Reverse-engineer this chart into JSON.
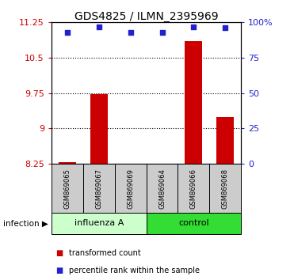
{
  "title": "GDS4825 / ILMN_2395969",
  "samples": [
    "GSM869065",
    "GSM869067",
    "GSM869069",
    "GSM869064",
    "GSM869066",
    "GSM869068"
  ],
  "groups": [
    "influenza A",
    "influenza A",
    "influenza A",
    "control",
    "control",
    "control"
  ],
  "bar_color": "#cc0000",
  "dot_color": "#2222cc",
  "transformed_counts": [
    8.28,
    9.72,
    8.22,
    8.22,
    10.85,
    9.25
  ],
  "percentile_ranks": [
    93,
    97,
    93,
    93,
    97,
    96
  ],
  "ylim": [
    8.25,
    11.25
  ],
  "ytick_labels": [
    "8.25",
    "9",
    "9.75",
    "10.5",
    "11.25"
  ],
  "ytick_vals": [
    8.25,
    9.0,
    9.75,
    10.5,
    11.25
  ],
  "right_ytick_vals": [
    0,
    25,
    50,
    75,
    100
  ],
  "right_ytick_labels": [
    "0",
    "25",
    "50",
    "75",
    "100%"
  ],
  "right_ylim": [
    0,
    100
  ],
  "bar_bottom": 8.25,
  "legend_bar_label": "transformed count",
  "legend_dot_label": "percentile rank within the sample",
  "group_box_color_light": "#ccffcc",
  "group_box_color_dark": "#33dd33",
  "sample_box_color": "#cccccc",
  "infection_label": "infection"
}
